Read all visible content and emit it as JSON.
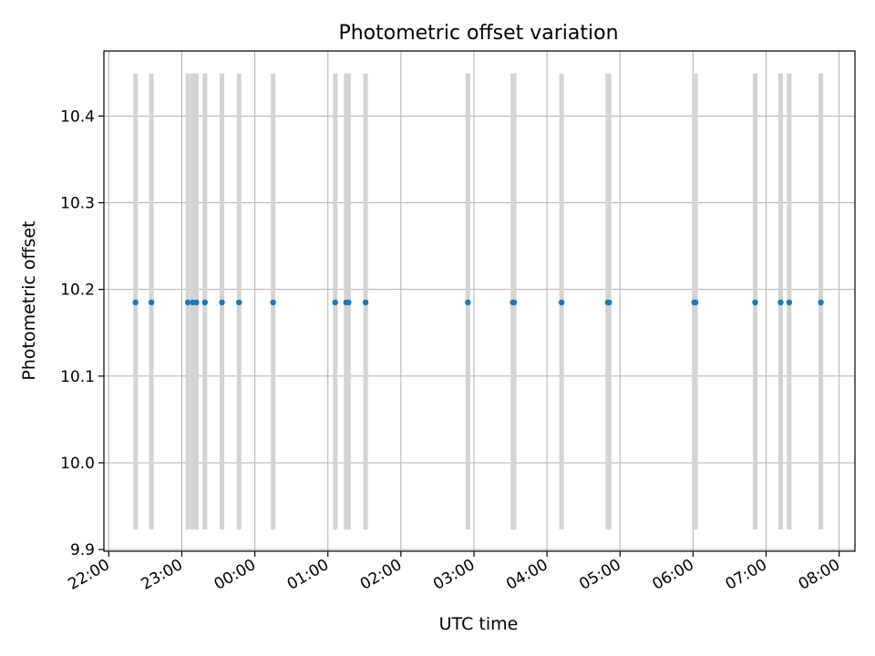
{
  "chart_data": {
    "type": "scatter",
    "title": "Photometric offset variation",
    "xlabel": "UTC time",
    "ylabel": "Photometric offset",
    "x_axis_type": "time",
    "xlim": [
      "21:56",
      "08:13"
    ],
    "ylim": [
      9.898,
      10.475
    ],
    "x_ticks": [
      "22:00",
      "23:00",
      "00:00",
      "01:00",
      "02:00",
      "03:00",
      "04:00",
      "05:00",
      "06:00",
      "07:00",
      "08:00"
    ],
    "y_ticks": [
      "9.9",
      "10.0",
      "10.1",
      "10.2",
      "10.3",
      "10.4"
    ],
    "grid": true,
    "point_color": "#1f77b4",
    "band_color": "#d3d3d3",
    "band_range": [
      9.923,
      10.449
    ],
    "points": [
      {
        "x": "22:22",
        "y": 10.185
      },
      {
        "x": "22:35",
        "y": 10.185
      },
      {
        "x": "23:05",
        "y": 10.185
      },
      {
        "x": "23:09",
        "y": 10.185
      },
      {
        "x": "23:12",
        "y": 10.185
      },
      {
        "x": "23:19",
        "y": 10.185
      },
      {
        "x": "23:33",
        "y": 10.185
      },
      {
        "x": "23:47",
        "y": 10.185
      },
      {
        "x": "00:15",
        "y": 10.185
      },
      {
        "x": "01:06",
        "y": 10.185
      },
      {
        "x": "01:15",
        "y": 10.185
      },
      {
        "x": "01:17",
        "y": 10.185
      },
      {
        "x": "01:31",
        "y": 10.185
      },
      {
        "x": "02:55",
        "y": 10.185
      },
      {
        "x": "03:32",
        "y": 10.185
      },
      {
        "x": "03:33",
        "y": 10.185
      },
      {
        "x": "04:12",
        "y": 10.185
      },
      {
        "x": "04:50",
        "y": 10.185
      },
      {
        "x": "04:51",
        "y": 10.185
      },
      {
        "x": "06:01",
        "y": 10.185
      },
      {
        "x": "06:02",
        "y": 10.185
      },
      {
        "x": "06:51",
        "y": 10.185
      },
      {
        "x": "07:12",
        "y": 10.185
      },
      {
        "x": "07:19",
        "y": 10.185
      },
      {
        "x": "07:45",
        "y": 10.185
      }
    ]
  }
}
